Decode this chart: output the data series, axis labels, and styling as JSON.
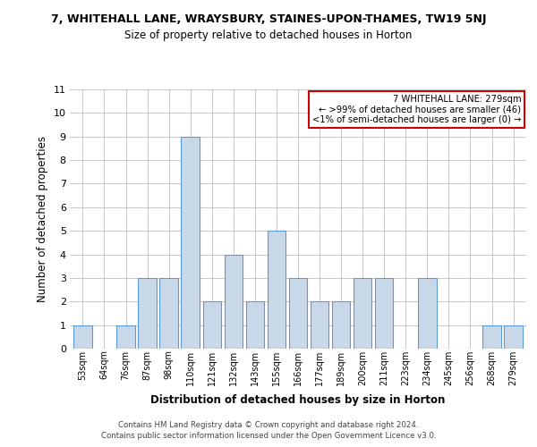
{
  "title_line1": "7, WHITEHALL LANE, WRAYSBURY, STAINES-UPON-THAMES, TW19 5NJ",
  "title_line2": "Size of property relative to detached houses in Horton",
  "xlabel": "Distribution of detached houses by size in Horton",
  "ylabel": "Number of detached properties",
  "categories": [
    "53sqm",
    "64sqm",
    "76sqm",
    "87sqm",
    "98sqm",
    "110sqm",
    "121sqm",
    "132sqm",
    "143sqm",
    "155sqm",
    "166sqm",
    "177sqm",
    "189sqm",
    "200sqm",
    "211sqm",
    "223sqm",
    "234sqm",
    "245sqm",
    "256sqm",
    "268sqm",
    "279sqm"
  ],
  "values": [
    1,
    0,
    1,
    3,
    3,
    9,
    2,
    4,
    2,
    5,
    3,
    2,
    2,
    3,
    3,
    0,
    3,
    0,
    0,
    1,
    1
  ],
  "bar_color": "#c8d8e8",
  "bar_edge_color": "#5b9bd5",
  "ylim": [
    0,
    11
  ],
  "yticks": [
    0,
    1,
    2,
    3,
    4,
    5,
    6,
    7,
    8,
    9,
    10,
    11
  ],
  "grid_color": "#c8c8c8",
  "background_color": "#ffffff",
  "annotation_text": "7 WHITEHALL LANE: 279sqm\n← >99% of detached houses are smaller (46)\n<1% of semi-detached houses are larger (0) →",
  "annotation_box_edge_color": "#cc0000",
  "footer_line1": "Contains HM Land Registry data © Crown copyright and database right 2024.",
  "footer_line2": "Contains public sector information licensed under the Open Government Licence v3.0."
}
